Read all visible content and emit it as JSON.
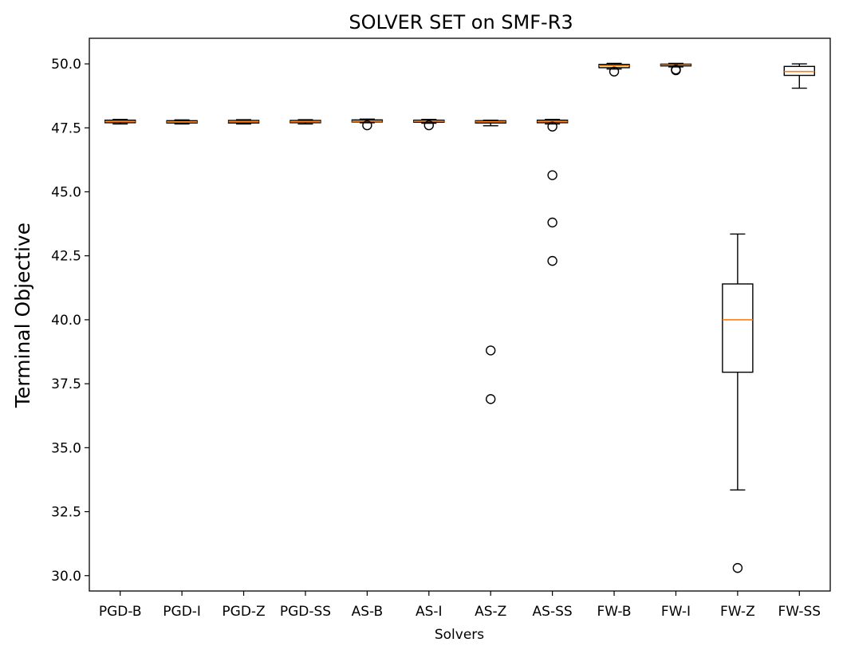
{
  "chart_data": {
    "type": "box",
    "title": "SOLVER SET on SMF-R3",
    "xlabel": "Solvers",
    "ylabel": "Terminal Objective",
    "ylim": [
      29.4,
      51.0
    ],
    "yticks": [
      30.0,
      32.5,
      35.0,
      37.5,
      40.0,
      42.5,
      45.0,
      47.5,
      50.0
    ],
    "ytick_labels": [
      "30.0",
      "32.5",
      "35.0",
      "37.5",
      "40.0",
      "42.5",
      "45.0",
      "47.5",
      "50.0"
    ],
    "grid": false,
    "colors": {
      "box": "#000000",
      "median": "#ff7f0e",
      "flier": "#000000"
    },
    "categories": [
      "PGD-B",
      "PGD-I",
      "PGD-Z",
      "PGD-SS",
      "AS-B",
      "AS-I",
      "AS-Z",
      "AS-SS",
      "FW-B",
      "FW-I",
      "FW-Z",
      "FW-SS"
    ],
    "boxes": [
      {
        "label": "PGD-B",
        "whislo": 47.65,
        "q1": 47.7,
        "med": 47.75,
        "q3": 47.8,
        "whishi": 47.83,
        "fliers": []
      },
      {
        "label": "PGD-I",
        "whislo": 47.65,
        "q1": 47.69,
        "med": 47.73,
        "q3": 47.78,
        "whishi": 47.81,
        "fliers": []
      },
      {
        "label": "PGD-Z",
        "whislo": 47.65,
        "q1": 47.69,
        "med": 47.74,
        "q3": 47.79,
        "whishi": 47.82,
        "fliers": []
      },
      {
        "label": "PGD-SS",
        "whislo": 47.65,
        "q1": 47.7,
        "med": 47.74,
        "q3": 47.79,
        "whishi": 47.82,
        "fliers": []
      },
      {
        "label": "AS-B",
        "whislo": 47.7,
        "q1": 47.73,
        "med": 47.76,
        "q3": 47.81,
        "whishi": 47.84,
        "fliers": [
          47.6
        ]
      },
      {
        "label": "AS-I",
        "whislo": 47.68,
        "q1": 47.72,
        "med": 47.76,
        "q3": 47.8,
        "whishi": 47.83,
        "fliers": [
          47.6
        ]
      },
      {
        "label": "AS-Z",
        "whislo": 47.58,
        "q1": 47.69,
        "med": 47.74,
        "q3": 47.78,
        "whishi": 47.8,
        "fliers": [
          38.8,
          36.9
        ]
      },
      {
        "label": "AS-SS",
        "whislo": 47.65,
        "q1": 47.7,
        "med": 47.75,
        "q3": 47.8,
        "whishi": 47.83,
        "fliers": [
          47.55,
          45.65,
          43.8,
          42.3
        ]
      },
      {
        "label": "FW-B",
        "whislo": 49.8,
        "q1": 49.85,
        "med": 49.93,
        "q3": 49.98,
        "whishi": 50.02,
        "fliers": [
          49.7
        ]
      },
      {
        "label": "FW-I",
        "whislo": 49.88,
        "q1": 49.92,
        "med": 49.96,
        "q3": 49.99,
        "whishi": 50.02,
        "fliers": [
          49.75,
          49.78
        ]
      },
      {
        "label": "FW-Z",
        "whislo": 33.35,
        "q1": 37.95,
        "med": 40.0,
        "q3": 41.4,
        "whishi": 43.35,
        "fliers": [
          30.3
        ]
      },
      {
        "label": "FW-SS",
        "whislo": 49.05,
        "q1": 49.55,
        "med": 49.7,
        "q3": 49.9,
        "whishi": 50.0,
        "fliers": []
      }
    ]
  }
}
